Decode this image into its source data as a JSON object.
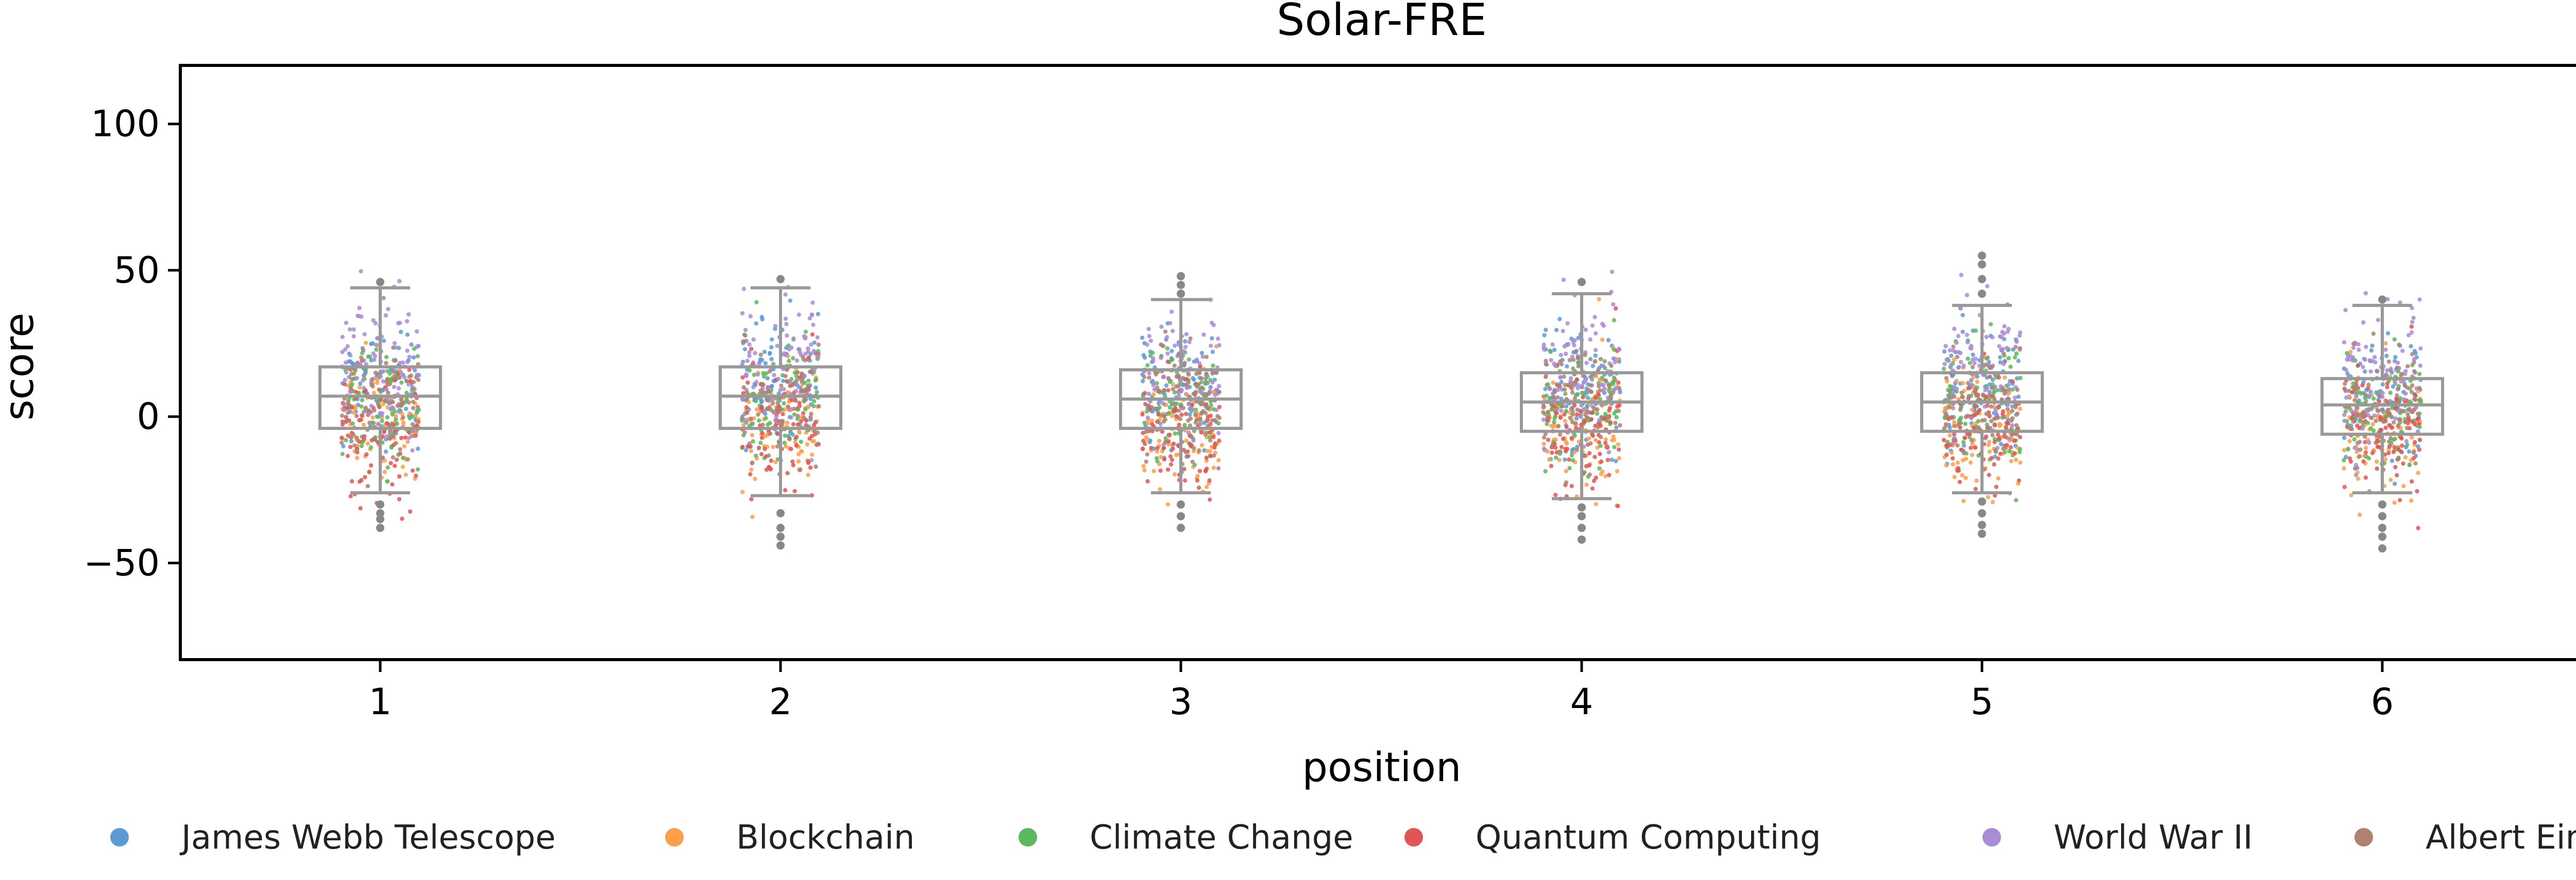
{
  "chart_data": {
    "type": "scatter",
    "subtype": "strip-plot-with-boxplot",
    "title": "Solar-FRE",
    "xlabel": "position",
    "ylabel": "score",
    "categories": [
      "1",
      "2",
      "3",
      "4",
      "5",
      "6"
    ],
    "ylim": [
      -83,
      120
    ],
    "yticks": [
      -50,
      0,
      50,
      100
    ],
    "ytick_labels": [
      "−50",
      "0",
      "50",
      "100"
    ],
    "grid": false,
    "legend_position": "bottom",
    "series": [
      {
        "name": "James Webb Telescope",
        "color": "#5b9bd5",
        "mean_by_position": [
          10,
          10,
          9,
          8,
          8,
          7
        ],
        "sd": 11
      },
      {
        "name": "Blockchain",
        "color": "#ff9f4a",
        "mean_by_position": [
          -2,
          -3,
          -3,
          -3,
          -4,
          -4
        ],
        "sd": 11
      },
      {
        "name": "Climate Change",
        "color": "#5cb85c",
        "mean_by_position": [
          5,
          6,
          5,
          4,
          4,
          3
        ],
        "sd": 11
      },
      {
        "name": "Quantum Computing",
        "color": "#e05555",
        "mean_by_position": [
          -4,
          -4,
          -4,
          -5,
          -5,
          -5
        ],
        "sd": 11
      },
      {
        "name": "World War II",
        "color": "#a98bd6",
        "mean_by_position": [
          18,
          18,
          16,
          15,
          15,
          14
        ],
        "sd": 12
      },
      {
        "name": "Albert Einstein",
        "color": "#b08070",
        "mean_by_position": [
          5,
          5,
          5,
          4,
          4,
          4
        ],
        "sd": 10
      }
    ],
    "boxplots": [
      {
        "position": "1",
        "whisker_low": -26,
        "q1": -4,
        "median": 7,
        "q3": 17,
        "whisker_high": 44,
        "outliers": [
          -30,
          -33,
          -35,
          -38,
          46
        ]
      },
      {
        "position": "2",
        "whisker_low": -27,
        "q1": -4,
        "median": 7,
        "q3": 17,
        "whisker_high": 44,
        "outliers": [
          -33,
          -38,
          -41,
          -44,
          47
        ]
      },
      {
        "position": "3",
        "whisker_low": -26,
        "q1": -4,
        "median": 6,
        "q3": 16,
        "whisker_high": 40,
        "outliers": [
          -30,
          -34,
          -38,
          42,
          45,
          48
        ]
      },
      {
        "position": "4",
        "whisker_low": -28,
        "q1": -5,
        "median": 5,
        "q3": 15,
        "whisker_high": 42,
        "outliers": [
          -31,
          -34,
          -38,
          -42,
          46
        ]
      },
      {
        "position": "5",
        "whisker_low": -26,
        "q1": -5,
        "median": 5,
        "q3": 15,
        "whisker_high": 38,
        "outliers": [
          -29,
          -33,
          -37,
          -40,
          42,
          47,
          52,
          55
        ]
      },
      {
        "position": "6",
        "whisker_low": -26,
        "q1": -6,
        "median": 4,
        "q3": 13,
        "whisker_high": 38,
        "outliers": [
          -30,
          -34,
          -38,
          -41,
          -45,
          40
        ]
      }
    ],
    "box_color": "#999999",
    "outlier_color": "#888888"
  }
}
